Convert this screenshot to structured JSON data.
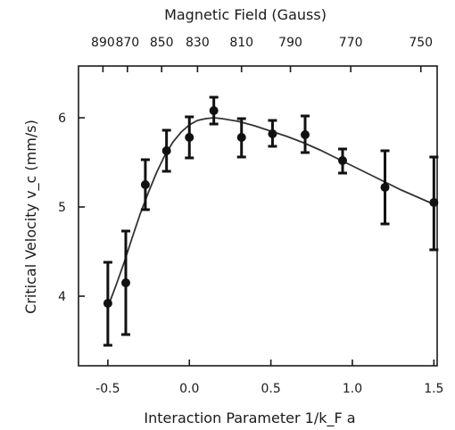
{
  "chart_data": {
    "type": "scatter",
    "title": "",
    "top_axis_label": "Magnetic Field (Gauss)",
    "top_tick_labels": [
      "890",
      "870",
      "850",
      "830",
      "810",
      "790",
      "770",
      "750"
    ],
    "top_tick_positions": [
      -0.53,
      -0.38,
      -0.17,
      0.05,
      0.32,
      0.62,
      0.99,
      1.42
    ],
    "xlabel": "Interaction Parameter 1/k_F a",
    "ylabel": "Critical Velocity v_c (mm/s)",
    "xlim": [
      -0.68,
      1.52
    ],
    "ylim": [
      3.22,
      6.58
    ],
    "x_ticks": [
      -0.5,
      0.0,
      0.5,
      1.0,
      1.5
    ],
    "x_tick_labels": [
      "-0.5",
      "0.0",
      "0.5",
      "1.0",
      "1.5"
    ],
    "y_ticks": [
      4,
      5,
      6
    ],
    "y_tick_labels": [
      "4",
      "5",
      "6"
    ],
    "grid": false,
    "series": [
      {
        "x": [
          -0.5,
          -0.39,
          -0.27,
          -0.14,
          0.0,
          0.15,
          0.32,
          0.51,
          0.71,
          0.94,
          1.2,
          1.5
        ],
        "y": [
          3.92,
          4.15,
          5.25,
          5.63,
          5.78,
          6.08,
          5.78,
          5.82,
          5.81,
          5.52,
          5.22,
          5.05
        ],
        "y_lo": [
          3.45,
          3.57,
          4.97,
          5.4,
          5.55,
          5.93,
          5.56,
          5.68,
          5.61,
          5.38,
          4.81,
          4.52
        ],
        "y_hi": [
          4.38,
          4.73,
          5.53,
          5.86,
          6.01,
          6.23,
          5.99,
          5.97,
          6.02,
          5.65,
          5.63,
          5.56
        ]
      }
    ],
    "fit_curve": {
      "x": [
        -0.5,
        -0.45,
        -0.4,
        -0.35,
        -0.3,
        -0.25,
        -0.2,
        -0.15,
        -0.1,
        -0.05,
        0.0,
        0.05,
        0.1,
        0.15,
        0.2,
        0.3,
        0.4,
        0.5,
        0.6,
        0.7,
        0.8,
        0.9,
        1.0,
        1.1,
        1.2,
        1.3,
        1.4,
        1.5
      ],
      "y": [
        3.88,
        4.12,
        4.38,
        4.66,
        4.93,
        5.17,
        5.39,
        5.58,
        5.73,
        5.84,
        5.92,
        5.97,
        5.99,
        6.0,
        5.99,
        5.96,
        5.91,
        5.85,
        5.79,
        5.72,
        5.64,
        5.55,
        5.46,
        5.37,
        5.28,
        5.19,
        5.11,
        5.03
      ]
    }
  }
}
